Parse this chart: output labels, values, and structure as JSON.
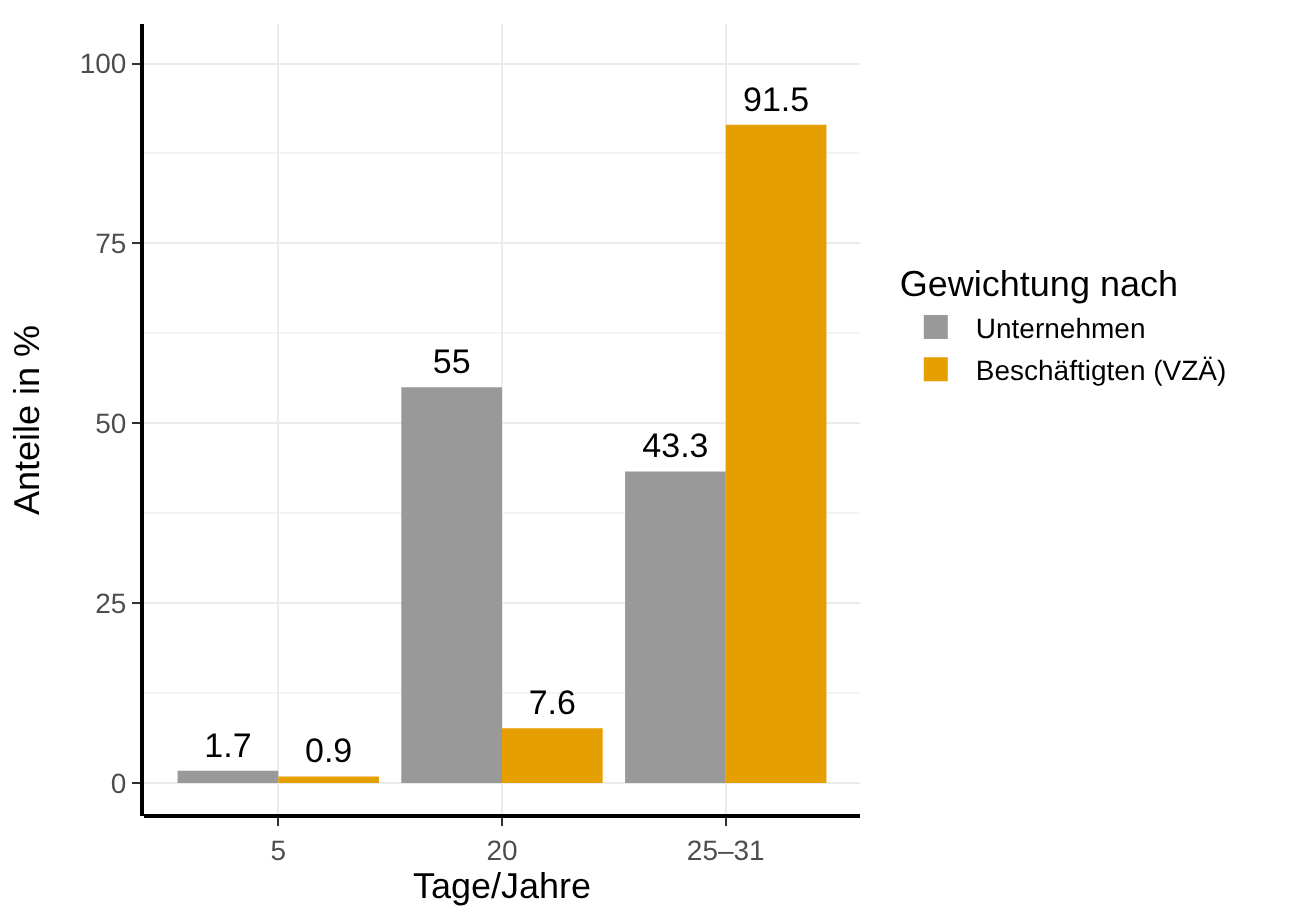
{
  "chart_data": {
    "type": "bar",
    "xlabel": "Tage/Jahre",
    "ylabel": "Anteile in %",
    "legend_title": "Gewichtung nach",
    "categories": [
      "5",
      "20",
      "25–31"
    ],
    "series": [
      {
        "name": "Unternehmen",
        "color": "#999999",
        "values": [
          1.7,
          55,
          43.3
        ]
      },
      {
        "name": "Beschäftigten (VZÄ)",
        "color": "#e69f00",
        "values": [
          0.9,
          7.6,
          91.5
        ]
      }
    ],
    "ylim": [
      -4.6,
      105.5
    ],
    "yticks": [
      0,
      25,
      50,
      75,
      100
    ],
    "grid": true,
    "legend": "right",
    "data_labels": true
  }
}
